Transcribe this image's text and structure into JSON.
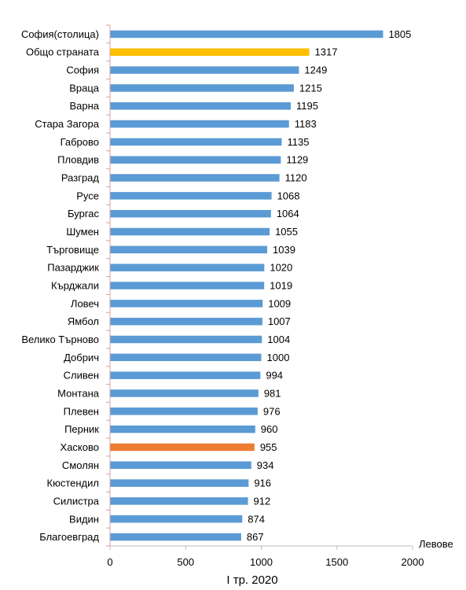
{
  "chart_data": {
    "type": "bar",
    "orientation": "horizontal",
    "categories": [
      "София(столица)",
      "Общо страната",
      "София",
      "Враца",
      "Варна",
      "Стара Загора",
      "Габрово",
      "Пловдив",
      "Разград",
      "Русе",
      "Бургас",
      "Шумен",
      "Търговище",
      "Пазарджик",
      "Кърджали",
      "Ловеч",
      "Ямбол",
      "Велико Търново",
      "Добрич",
      "Сливен",
      "Монтана",
      "Плевен",
      "Перник",
      "Хасково",
      "Смолян",
      "Кюстендил",
      "Силистра",
      "Видин",
      "Благоевград"
    ],
    "values": [
      1805,
      1317,
      1249,
      1215,
      1195,
      1183,
      1135,
      1129,
      1120,
      1068,
      1064,
      1055,
      1039,
      1020,
      1019,
      1009,
      1007,
      1004,
      1000,
      994,
      981,
      976,
      960,
      955,
      934,
      916,
      912,
      874,
      867
    ],
    "value_labels": [
      "1805",
      "1317",
      "1249",
      "1215",
      "1195",
      "1183",
      "1135",
      "1129",
      "1120",
      "1068",
      "1064",
      "1055",
      "1039",
      "1020",
      "1019",
      "1009",
      "1007",
      "1004",
      "1000",
      "994",
      "981",
      "976",
      "960",
      "955",
      "934",
      "916",
      "912",
      "874",
      "867"
    ],
    "bar_colors": [
      "#5b9bd5",
      "#ffc000",
      "#5b9bd5",
      "#5b9bd5",
      "#5b9bd5",
      "#5b9bd5",
      "#5b9bd5",
      "#5b9bd5",
      "#5b9bd5",
      "#5b9bd5",
      "#5b9bd5",
      "#5b9bd5",
      "#5b9bd5",
      "#5b9bd5",
      "#5b9bd5",
      "#5b9bd5",
      "#5b9bd5",
      "#5b9bd5",
      "#5b9bd5",
      "#5b9bd5",
      "#5b9bd5",
      "#5b9bd5",
      "#5b9bd5",
      "#ed7d31",
      "#5b9bd5",
      "#5b9bd5",
      "#5b9bd5",
      "#5b9bd5",
      "#5b9bd5"
    ],
    "xlim": [
      0,
      2000
    ],
    "x_ticks": [
      "0",
      "500",
      "1000",
      "1500",
      "2000"
    ],
    "xlabel": "I тр. 2020",
    "unit_label": "Левове",
    "grid": false,
    "legend": "none",
    "title": ""
  }
}
